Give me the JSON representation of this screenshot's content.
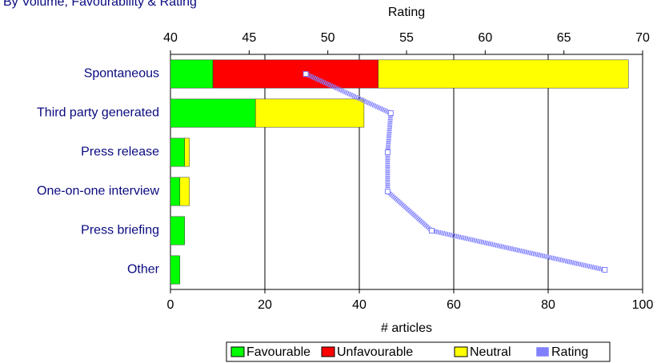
{
  "chart_data": {
    "type": "bar",
    "orientation": "horizontal",
    "stacked": true,
    "title": "By Volume, Favourability & Rating",
    "xlabel": "# articles",
    "x2label": "Rating",
    "categories": [
      "Spontaneous",
      "Third party generated",
      "Press release",
      "One-on-one interview",
      "Press briefing",
      "Other"
    ],
    "series": [
      {
        "name": "Favourable",
        "color": "#00ff00",
        "values": [
          9,
          18,
          3,
          2,
          3,
          2
        ]
      },
      {
        "name": "Unfavourable",
        "color": "#ff0000",
        "values": [
          35,
          0,
          0,
          0,
          0,
          0
        ]
      },
      {
        "name": "Neutral",
        "color": "#ffff00",
        "values": [
          53,
          23,
          1,
          2,
          0,
          0
        ]
      },
      {
        "name": "Rating",
        "color": "#8080ff",
        "type": "line",
        "axis": "x2",
        "values": [
          48.6,
          54.0,
          53.8,
          53.8,
          56.6,
          67.6
        ]
      }
    ],
    "xlim": [
      0,
      100
    ],
    "xticks": [
      0,
      20,
      40,
      60,
      80,
      100
    ],
    "x2lim": [
      40,
      70
    ],
    "x2ticks": [
      40,
      45,
      50,
      55,
      60,
      65,
      70
    ],
    "grid": true,
    "legend": "bottom"
  }
}
